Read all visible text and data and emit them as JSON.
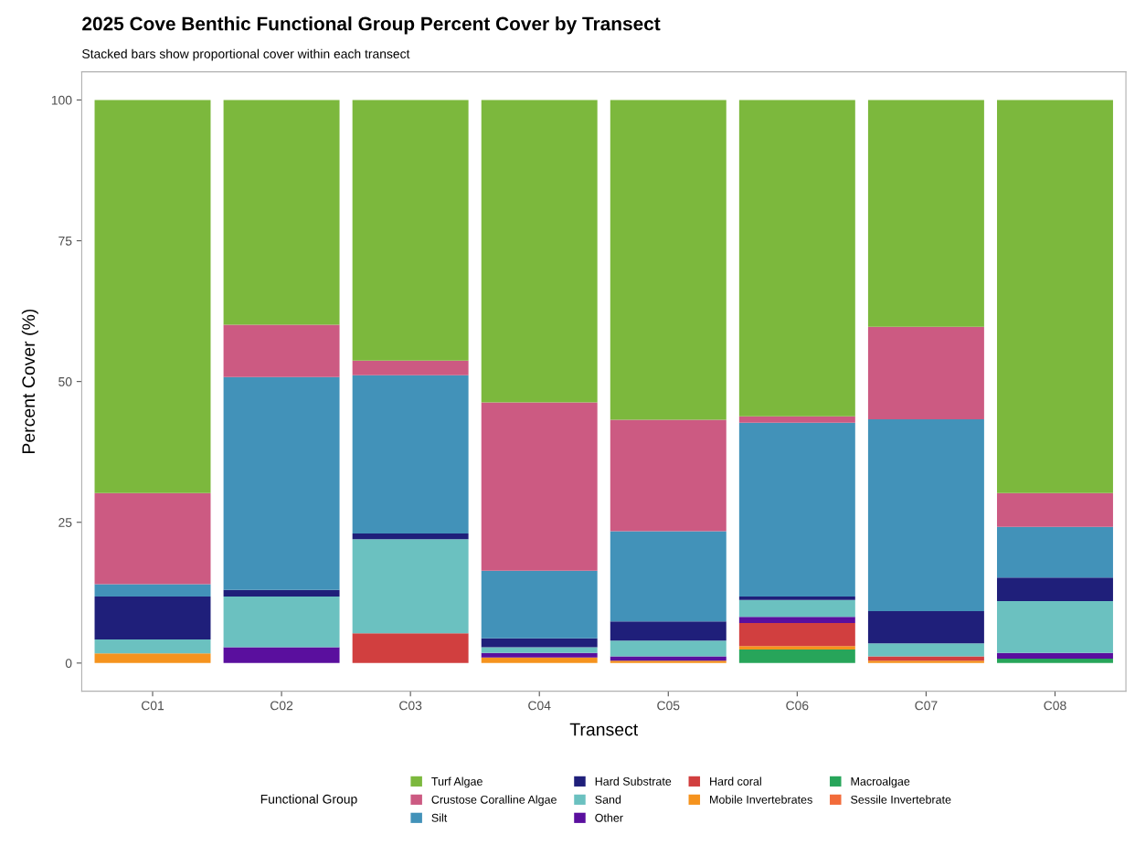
{
  "chart_data": {
    "type": "bar",
    "stacked": true,
    "title": "2025 Cove Benthic Functional Group Percent Cover by Transect",
    "subtitle": "Stacked bars show proportional cover within each transect",
    "xlabel": "Transect",
    "ylabel": "Percent Cover (%)",
    "legend_title": "Functional Group",
    "categories": [
      "C01",
      "C02",
      "C03",
      "C04",
      "C05",
      "C06",
      "C07",
      "C08"
    ],
    "series": [
      {
        "name": "Sessile Invertebrate",
        "color": "#f26b3a",
        "values": [
          0,
          0,
          0,
          0,
          0,
          0,
          0,
          0
        ]
      },
      {
        "name": "Macroalgae",
        "color": "#27a55a",
        "values": [
          0,
          0,
          0,
          0,
          0,
          2.4,
          0,
          0.8
        ]
      },
      {
        "name": "Mobile Invertebrates",
        "color": "#f5931e",
        "values": [
          1.7,
          0,
          0,
          1.0,
          0.4,
          0.6,
          0.4,
          0
        ]
      },
      {
        "name": "Hard coral",
        "color": "#d13f3f",
        "values": [
          0,
          0,
          5.3,
          0,
          0,
          4.1,
          0.8,
          0
        ]
      },
      {
        "name": "Other",
        "color": "#5a0f9e",
        "values": [
          0,
          2.8,
          0,
          0.8,
          0.8,
          1.1,
          0,
          1.0
        ]
      },
      {
        "name": "Sand",
        "color": "#6bc1c0",
        "values": [
          2.5,
          9.0,
          16.7,
          1.0,
          2.8,
          3.0,
          2.3,
          9.2
        ]
      },
      {
        "name": "Hard Substrate",
        "color": "#1f1f7a",
        "values": [
          7.6,
          1.2,
          1.0,
          1.6,
          3.4,
          0.6,
          5.7,
          4.2
        ]
      },
      {
        "name": "Silt",
        "color": "#4292b9",
        "values": [
          2.2,
          37.8,
          28.1,
          12.0,
          16.0,
          30.9,
          34.1,
          9.0
        ]
      },
      {
        "name": "Crustose Coralline Algae",
        "color": "#cc5a82",
        "values": [
          16.2,
          9.3,
          2.6,
          29.9,
          19.8,
          1.1,
          16.4,
          6.0
        ]
      },
      {
        "name": "Turf Algae",
        "color": "#7cb83d",
        "values": [
          69.8,
          39.9,
          46.3,
          53.7,
          56.8,
          56.2,
          40.3,
          69.8
        ]
      }
    ],
    "ylim": [
      -5,
      105
    ],
    "yticks": [
      0,
      25,
      50,
      75,
      100
    ],
    "grid": false,
    "legend": "bottom"
  }
}
